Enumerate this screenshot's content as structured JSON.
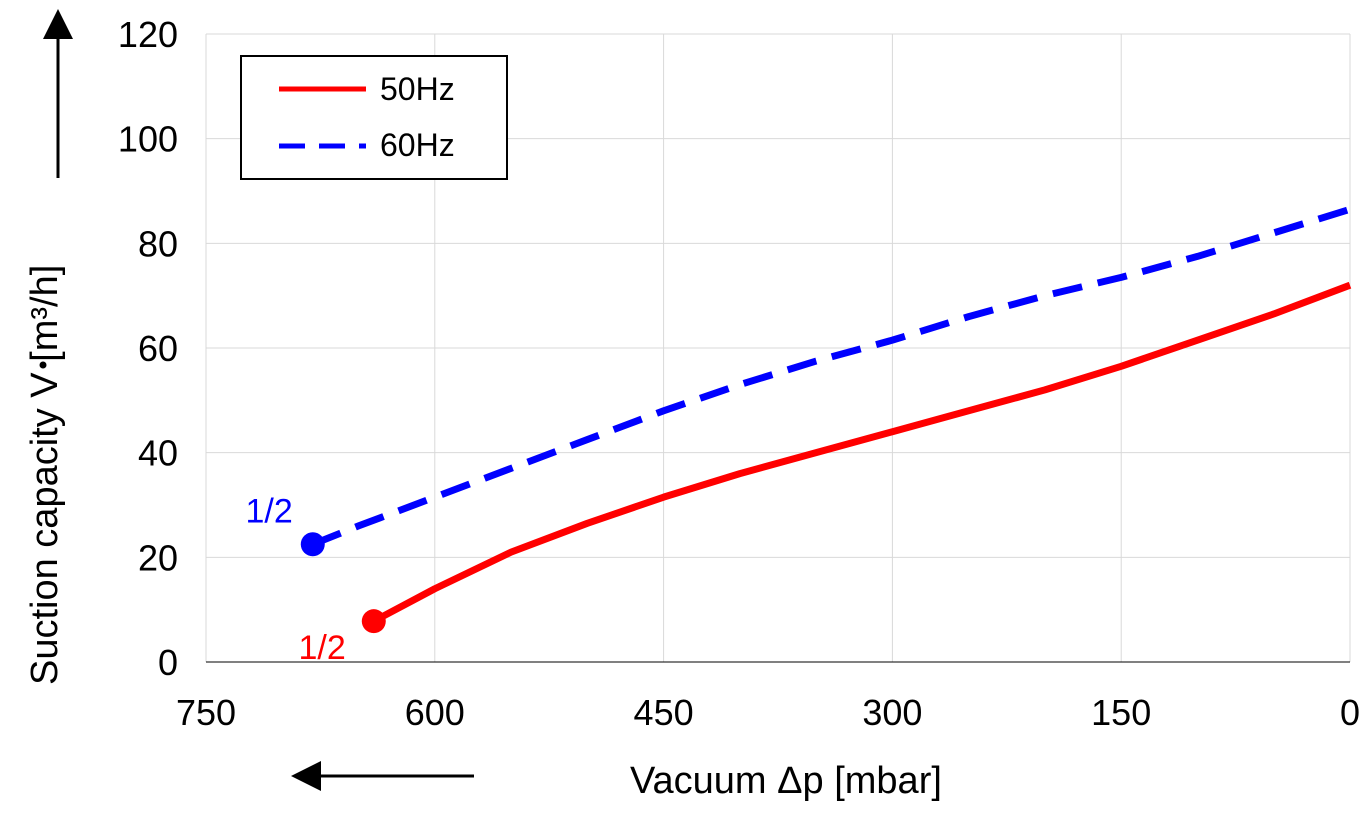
{
  "chart_data": {
    "type": "line",
    "title": "",
    "xlabel": "Vacuum Δp [mbar]",
    "ylabel_prefix": "Suction capacity ",
    "ylabel_symbol": "V",
    "ylabel_unit": " [m³/h]",
    "xlim": [
      750,
      0
    ],
    "ylim": [
      0,
      120
    ],
    "x_ticks": [
      750,
      600,
      450,
      300,
      150,
      0
    ],
    "y_ticks": [
      0,
      20,
      40,
      60,
      80,
      100,
      120
    ],
    "grid": true,
    "legend_position": "top-left",
    "series": [
      {
        "name": "50Hz",
        "color": "#ff0000",
        "style": "solid",
        "x": [
          640,
          600,
          550,
          500,
          450,
          400,
          350,
          300,
          250,
          200,
          150,
          100,
          50,
          0
        ],
        "y": [
          7.8,
          14.0,
          21.0,
          26.5,
          31.5,
          36.0,
          40.0,
          44.0,
          48.0,
          52.0,
          56.5,
          61.5,
          66.5,
          72.0
        ],
        "marker": {
          "x": 640,
          "y": 7.8,
          "label": "1/2"
        }
      },
      {
        "name": "60Hz",
        "color": "#0000ff",
        "style": "dashed",
        "x": [
          680,
          650,
          600,
          550,
          500,
          450,
          400,
          350,
          300,
          250,
          200,
          150,
          100,
          50,
          0
        ],
        "y": [
          22.5,
          26.0,
          31.5,
          37.0,
          42.5,
          48.0,
          53.0,
          57.5,
          61.5,
          66.0,
          70.0,
          73.5,
          77.5,
          82.0,
          86.5
        ],
        "marker": {
          "x": 680,
          "y": 22.5,
          "label": "1/2"
        }
      }
    ]
  }
}
